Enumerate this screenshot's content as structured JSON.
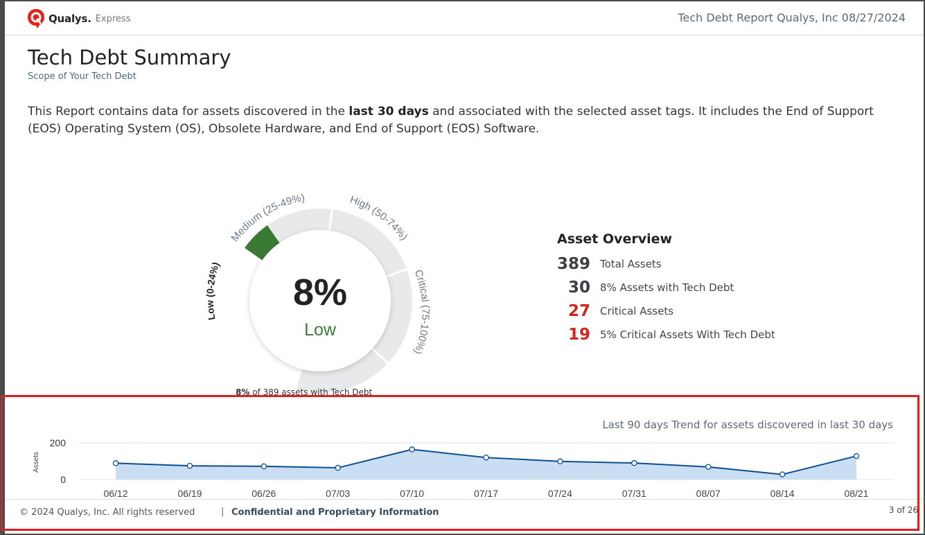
{
  "header": {
    "brand_name": "Qualys.",
    "brand_sub": "Express",
    "report_title": "Tech Debt Report Qualys, Inc 08/27/2024"
  },
  "title": "Tech Debt Summary",
  "subtitle": "Scope of Your Tech Debt",
  "intro": {
    "part1": "This Report contains data for assets discovered in the ",
    "bold": "last 30 days",
    "part2": " and associated with the selected asset tags. It includes the End of Support (EOS) Operating System (OS), Obsolete Hardware, and End of Support (EOS) Software."
  },
  "gauge": {
    "value_label": "8%",
    "value": 8,
    "level": "Low",
    "segments": [
      {
        "label": "Low (0-24%)",
        "from": 0,
        "to": 25
      },
      {
        "label": "Medium (25-49%)",
        "from": 25,
        "to": 50
      },
      {
        "label": "High (50-74%)",
        "from": 50,
        "to": 75
      },
      {
        "label": "Critical (75-100%)",
        "from": 75,
        "to": 100
      }
    ],
    "caption_bold": "8%",
    "caption_rest": " of 389 assets with Tech Debt",
    "colors": {
      "track": "#e8e9ea",
      "fill": "#3a7a34",
      "level_text": "#3a7a34"
    }
  },
  "overview": {
    "title": "Asset Overview",
    "rows": [
      {
        "value": "389",
        "label": "Total Assets",
        "color": "#3a3f44"
      },
      {
        "value": "30",
        "label": "8% Assets with Tech Debt",
        "color": "#3a3f44"
      },
      {
        "value": "27",
        "label": "Critical Assets",
        "color": "#d0261d"
      },
      {
        "value": "19",
        "label": "5% Critical Assets With Tech Debt",
        "color": "#d0261d"
      }
    ]
  },
  "trend": {
    "title": "Last 90 days Trend for assets discovered in last 30 days"
  },
  "chart_data": {
    "type": "area",
    "title": "Last 90 days Trend for assets discovered in last 30 days",
    "xlabel": "",
    "ylabel": "Assets",
    "categories": [
      "06/12",
      "06/19",
      "06/26",
      "07/03",
      "07/10",
      "07/17",
      "07/24",
      "07/31",
      "08/07",
      "08/14",
      "08/21"
    ],
    "series": [
      {
        "name": "Assets",
        "values": [
          89,
          75,
          72,
          64,
          164,
          120,
          99,
          90,
          69,
          28,
          128
        ]
      }
    ],
    "yticks": [
      0,
      200
    ],
    "ylim": [
      0,
      200
    ],
    "grid": true,
    "colors": {
      "line": "#0b4f8f",
      "fill": "#c9def3"
    }
  },
  "footer": {
    "copyright": "© 2024 Qualys, Inc. All rights reserved",
    "separator": "|",
    "confidential": "Confidential and Proprietary Information",
    "page": "3 of 26"
  }
}
